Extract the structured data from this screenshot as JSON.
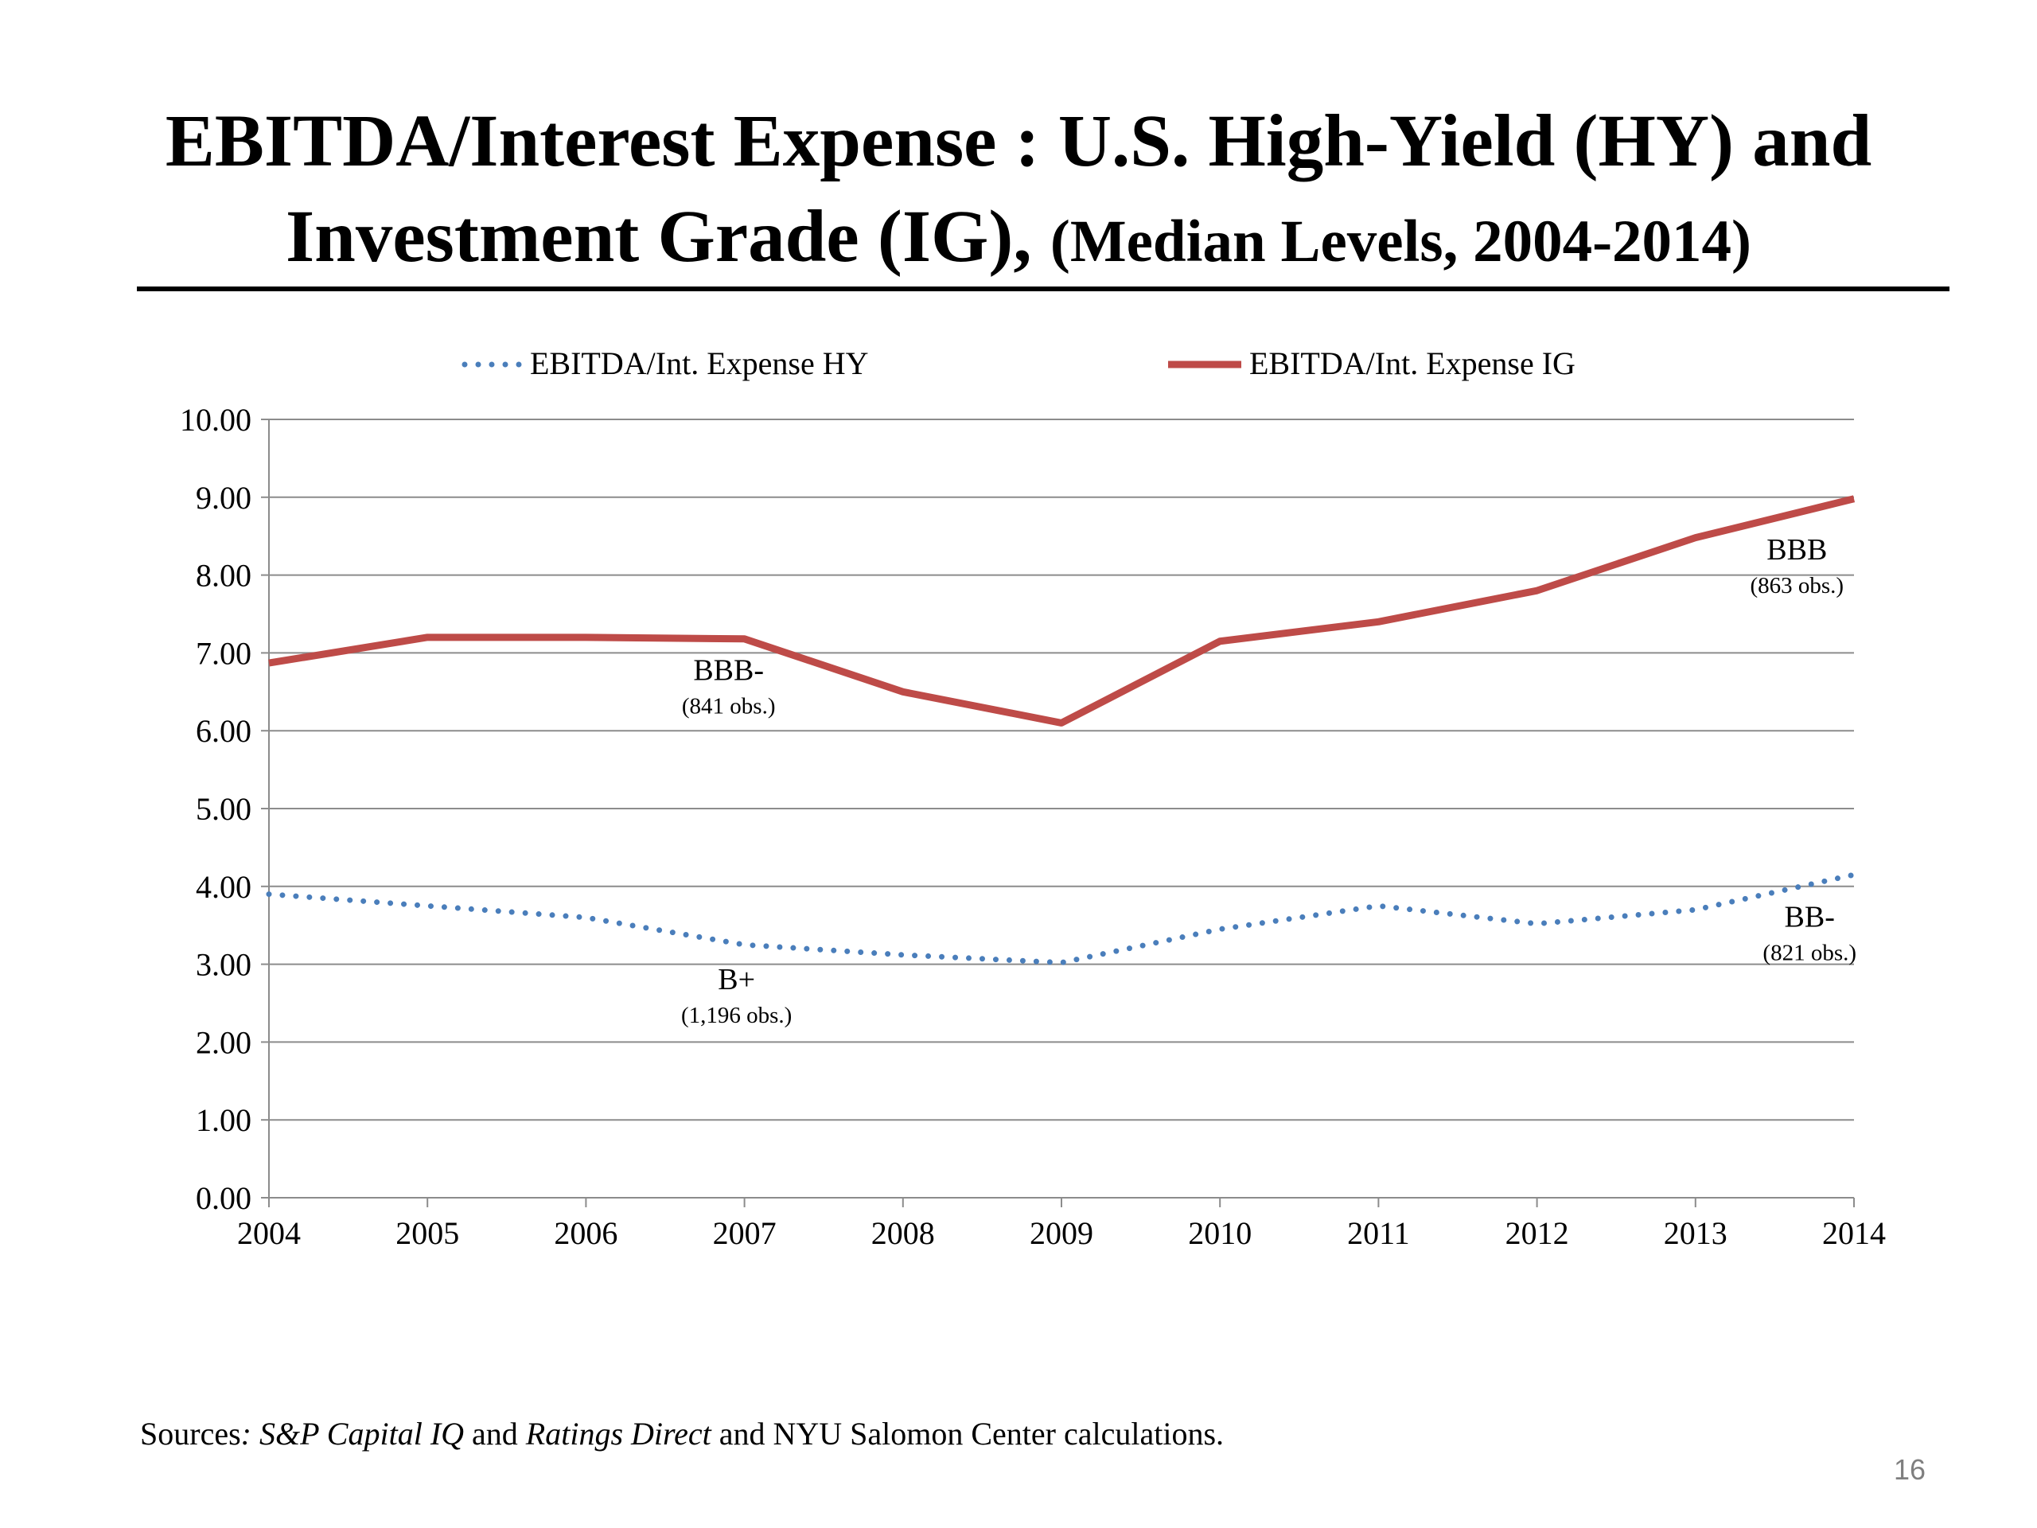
{
  "slide": {
    "title_line1": "EBITDA/Interest Expense : U.S. High-Yield (HY) and",
    "title_line2": "Investment Grade (IG),",
    "title_subtitle": "(Median Levels, 2004-2014)",
    "sources_prefix": "Sources",
    "sources_colon": ": S&P ",
    "sources_italic1": "Capital IQ",
    "sources_mid": " and ",
    "sources_italic2": "Ratings Direct",
    "sources_suffix": " and NYU Salomon Center calculations.",
    "page_number": "16"
  },
  "chart_data": {
    "type": "line",
    "x": [
      2004,
      2005,
      2006,
      2007,
      2008,
      2009,
      2010,
      2011,
      2012,
      2013,
      2014
    ],
    "xticklabels": [
      "2004",
      "2005",
      "2006",
      "2007",
      "2008",
      "2009",
      "2010",
      "2011",
      "2012",
      "2013",
      "2014"
    ],
    "yticklabels": [
      "0.00",
      "1.00",
      "2.00",
      "3.00",
      "4.00",
      "5.00",
      "6.00",
      "7.00",
      "8.00",
      "9.00",
      "10.00"
    ],
    "ylim": [
      0,
      10
    ],
    "grid": true,
    "legend_position": "top",
    "series": [
      {
        "name": "EBITDA/Int. Expense HY",
        "style": "dotted",
        "color": "#4a7ebb",
        "values": [
          3.9,
          3.75,
          3.6,
          3.25,
          3.12,
          3.02,
          3.45,
          3.75,
          3.52,
          3.7,
          4.15
        ]
      },
      {
        "name": "EBITDA/Int. Expense IG",
        "style": "solid",
        "color": "#be4b48",
        "values": [
          6.87,
          7.2,
          7.2,
          7.18,
          6.5,
          6.1,
          7.15,
          7.4,
          7.8,
          8.48,
          8.98
        ]
      }
    ],
    "annotations": [
      {
        "label": "BBB-",
        "note": "(841 obs.)",
        "x": 2006.9,
        "y": 6.65
      },
      {
        "label": "B+",
        "note": "(1,196 obs.)",
        "x": 2006.95,
        "y": 2.68
      },
      {
        "label": "BBB",
        "note": "(863 obs.)",
        "x": 2013.64,
        "y": 8.2
      },
      {
        "label": "BB-",
        "note": "(821 obs.)",
        "x": 2013.72,
        "y": 3.48
      }
    ]
  }
}
